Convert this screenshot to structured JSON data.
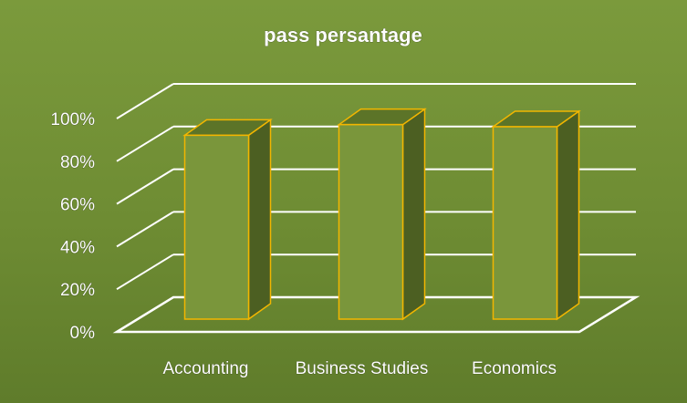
{
  "chart_data": {
    "type": "bar",
    "title": "pass persantage",
    "categories": [
      "Accounting",
      "Business Studies",
      "Economics"
    ],
    "values": [
      93,
      98,
      97
    ],
    "y_ticks": [
      "0%",
      "20%",
      "40%",
      "60%",
      "80%",
      "100%"
    ],
    "ylim": [
      0,
      100
    ],
    "grid": true,
    "colors": {
      "bar_front": "#7a963b",
      "bar_side": "#4c5f22",
      "bar_top": "#5c7428",
      "bar_outline": "#f2b600",
      "gridline": "#ffffff"
    }
  }
}
